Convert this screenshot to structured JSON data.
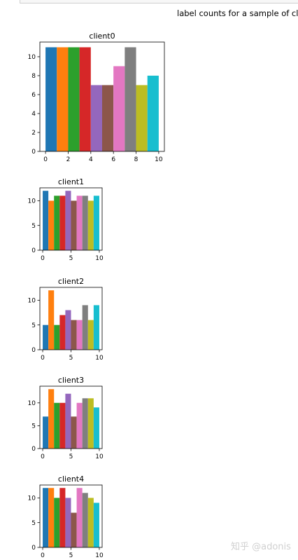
{
  "figure": {
    "suptitle": "label counts for a sample of clie",
    "watermark": "知乎 @adonis"
  },
  "colors": [
    "#1f77b4",
    "#ff7f0e",
    "#2ca02c",
    "#d62728",
    "#9467bd",
    "#8c564b",
    "#e377c2",
    "#7f7f7f",
    "#bcbd22",
    "#17becf"
  ],
  "chart_data": [
    {
      "type": "bar",
      "title": "client0",
      "x": [
        0,
        1,
        2,
        3,
        4,
        5,
        6,
        7,
        8,
        9
      ],
      "values": [
        11,
        11,
        11,
        11,
        7,
        7,
        9,
        11,
        7,
        8
      ],
      "xlim": [
        -0.5,
        10.5
      ],
      "ylim": [
        0,
        11.55
      ],
      "xticks": [
        0,
        2,
        4,
        6,
        8,
        10
      ],
      "yticks": [
        0,
        2,
        4,
        6,
        8,
        10
      ]
    },
    {
      "type": "bar",
      "title": "client1",
      "x": [
        0,
        1,
        2,
        3,
        4,
        5,
        6,
        7,
        8,
        9
      ],
      "values": [
        12,
        10,
        11,
        11,
        12,
        10,
        11,
        11,
        10,
        11
      ],
      "xlim": [
        -0.5,
        10.5
      ],
      "ylim": [
        0,
        12.6
      ],
      "xticks": [
        0,
        5,
        10
      ],
      "yticks": [
        0,
        5,
        10
      ]
    },
    {
      "type": "bar",
      "title": "client2",
      "x": [
        0,
        1,
        2,
        3,
        4,
        5,
        6,
        7,
        8,
        9
      ],
      "values": [
        5,
        12,
        5,
        7,
        8,
        6,
        6,
        9,
        6,
        9
      ],
      "xlim": [
        -0.5,
        10.5
      ],
      "ylim": [
        0,
        12.6
      ],
      "xticks": [
        0,
        5,
        10
      ],
      "yticks": [
        0,
        5,
        10
      ]
    },
    {
      "type": "bar",
      "title": "client3",
      "x": [
        0,
        1,
        2,
        3,
        4,
        5,
        6,
        7,
        8,
        9
      ],
      "values": [
        7,
        13,
        10,
        10,
        12,
        7,
        10,
        11,
        11,
        9
      ],
      "xlim": [
        -0.5,
        10.5
      ],
      "ylim": [
        0,
        13.65
      ],
      "xticks": [
        0,
        5,
        10
      ],
      "yticks": [
        0,
        5,
        10
      ]
    },
    {
      "type": "bar",
      "title": "client4",
      "x": [
        0,
        1,
        2,
        3,
        4,
        5,
        6,
        7,
        8,
        9
      ],
      "values": [
        12,
        12,
        10,
        12,
        10,
        7,
        12,
        11,
        10,
        9
      ],
      "xlim": [
        -0.5,
        10.5
      ],
      "ylim": [
        0,
        12.6
      ],
      "xticks": [
        0,
        5,
        10
      ],
      "yticks": [
        0,
        5,
        10
      ]
    }
  ]
}
